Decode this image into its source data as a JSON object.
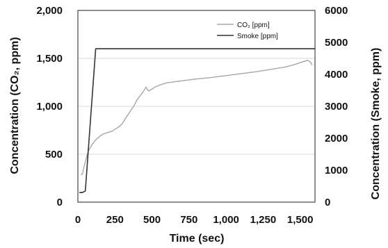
{
  "chart_data": {
    "type": "line",
    "xlabel": "Time (sec)",
    "ylabel_left": "Concentration  (CO₂, ppm)",
    "ylabel_right": "Concentration  (Smoke, ppm)",
    "xlim": [
      0,
      1600
    ],
    "ylim_left": [
      0,
      2000
    ],
    "ylim_right": [
      0,
      6000
    ],
    "x_ticks": [
      0,
      250,
      500,
      750,
      1000,
      1250,
      1500
    ],
    "x_tick_labels": [
      "0",
      "250",
      "500",
      "750",
      "1,000",
      "1,250",
      "1,500"
    ],
    "y_left_ticks": [
      0,
      500,
      1000,
      1500,
      2000
    ],
    "y_left_tick_labels": [
      "0",
      "500",
      "1,000",
      "1,500",
      "2,000"
    ],
    "y_right_ticks": [
      0,
      1000,
      2000,
      3000,
      4000,
      5000,
      6000
    ],
    "y_right_tick_labels": [
      "0",
      "1000",
      "2000",
      "3000",
      "4000",
      "5000",
      "6000"
    ],
    "grid": "horizontal",
    "legend_position": "top-right",
    "series": [
      {
        "name": "CO₂ [ppm]",
        "axis": "left",
        "color": "#a6a6a6",
        "x": [
          20,
          30,
          40,
          50,
          60,
          70,
          80,
          100,
          120,
          150,
          170,
          200,
          230,
          250,
          280,
          300,
          320,
          350,
          380,
          400,
          420,
          440,
          460,
          470,
          480,
          490,
          500,
          520,
          550,
          580,
          600,
          650,
          700,
          750,
          800,
          900,
          1000,
          1100,
          1200,
          1300,
          1400,
          1450,
          1500,
          1550,
          1570,
          1580
        ],
        "y": [
          290,
          290,
          360,
          420,
          480,
          530,
          560,
          610,
          650,
          690,
          710,
          725,
          740,
          760,
          790,
          820,
          870,
          940,
          1010,
          1070,
          1110,
          1150,
          1200,
          1170,
          1160,
          1170,
          1180,
          1200,
          1220,
          1235,
          1245,
          1255,
          1265,
          1275,
          1285,
          1300,
          1320,
          1340,
          1360,
          1385,
          1410,
          1430,
          1455,
          1480,
          1460,
          1430
        ]
      },
      {
        "name": "Smoke [ppm]",
        "axis": "right",
        "color": "#333333",
        "x": [
          10,
          30,
          50,
          120,
          1600
        ],
        "y": [
          300,
          300,
          350,
          4800,
          4800
        ]
      }
    ]
  }
}
